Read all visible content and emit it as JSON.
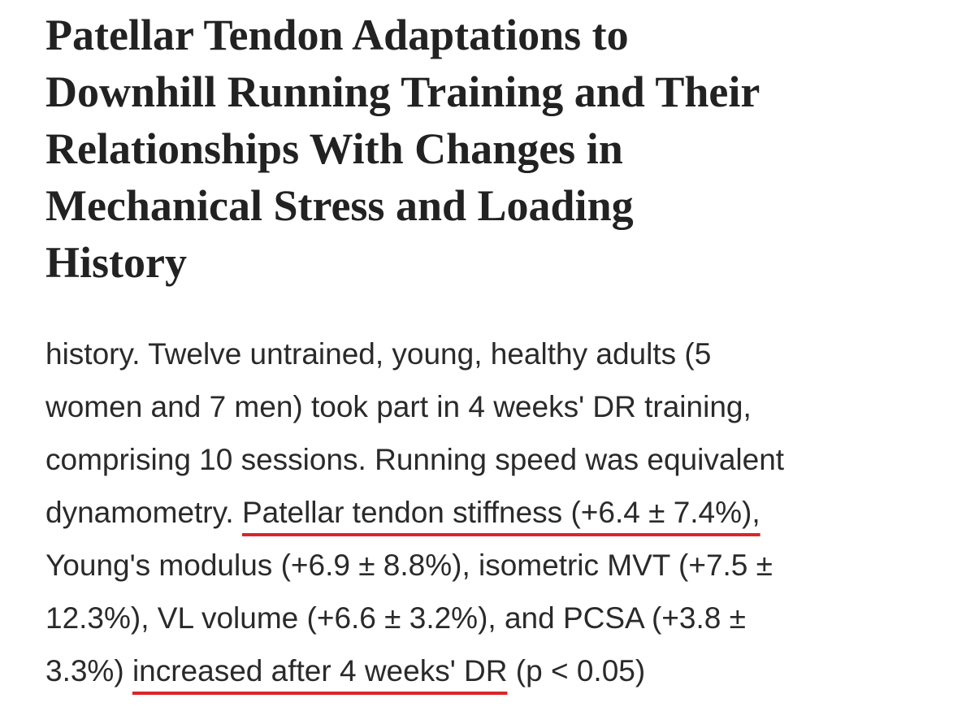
{
  "title_lines": [
    "Patellar Tendon Adaptations to",
    "Downhill Running Training and Their",
    "Relationships With Changes in",
    "Mechanical Stress and Loading",
    "History"
  ],
  "body_lines": [
    [
      {
        "text": "history. Twelve untrained, young, healthy adults (5"
      }
    ],
    [
      {
        "text": "women and 7 men) took part in 4 weeks' DR training,"
      }
    ],
    [
      {
        "text": "comprising 10 sessions. Running speed was equivalent"
      }
    ],
    [
      {
        "text": "dynamometry. "
      },
      {
        "text": "Patellar tendon stiffness (+6.4 ± 7.4%),",
        "underlined": true
      }
    ],
    [
      {
        "text": "Young's modulus (+6.9 ± 8.8%), isometric MVT (+7.5 ±"
      }
    ],
    [
      {
        "text": "12.3%), VL volume (+6.6 ± 3.2%), and PCSA (+3.8 ±"
      }
    ],
    [
      {
        "text": "3.3%) "
      },
      {
        "text": "increased after 4 weeks' DR",
        "underlined": true
      },
      {
        "text": " (p < 0.05)"
      }
    ]
  ]
}
